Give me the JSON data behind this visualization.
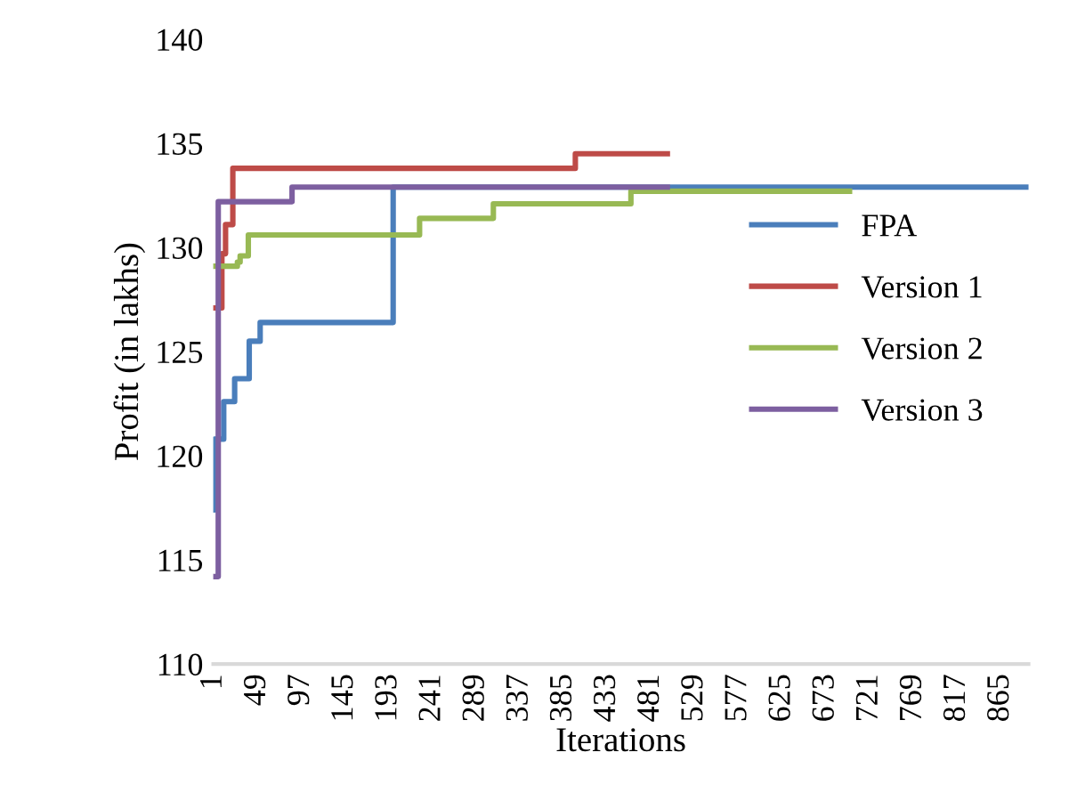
{
  "chart_data": {
    "type": "step",
    "xlabel": "Iterations",
    "ylabel": "Profit (in lakhs)",
    "xlim": [
      0.5,
      895.5
    ],
    "xticks": [
      1,
      49,
      97,
      145,
      193,
      241,
      289,
      337,
      385,
      433,
      481,
      529,
      577,
      625,
      673,
      721,
      769,
      817,
      865
    ],
    "ylim": [
      110,
      140
    ],
    "yticks": [
      110,
      115,
      120,
      125,
      130,
      135,
      140
    ],
    "grid": false,
    "legend": "right",
    "marker": "none",
    "line_style": "solid",
    "series": [
      {
        "name": "FPA",
        "color": "#4a7ebb",
        "x": [
          1,
          2,
          12,
          24,
          40,
          52,
          198,
          895
        ],
        "values": [
          117.4,
          120.8,
          122.6,
          123.7,
          125.5,
          126.4,
          132.9,
          132.9
        ]
      },
      {
        "name": "Version 1",
        "color": "#be4b48",
        "x": [
          1,
          10,
          14,
          22,
          398,
          499
        ],
        "values": [
          127.1,
          129.7,
          131.1,
          133.8,
          134.5,
          134.5
        ]
      },
      {
        "name": "Version 2",
        "color": "#98b954",
        "x": [
          1,
          27,
          30,
          39,
          227,
          308,
          459,
          699
        ],
        "values": [
          129.1,
          129.3,
          129.6,
          130.6,
          131.4,
          132.1,
          132.7,
          132.7
        ]
      },
      {
        "name": "Version 3",
        "color": "#7d5fa0",
        "x": [
          1,
          6,
          87,
          499
        ],
        "values": [
          114.2,
          132.2,
          132.9,
          132.9
        ]
      }
    ]
  }
}
